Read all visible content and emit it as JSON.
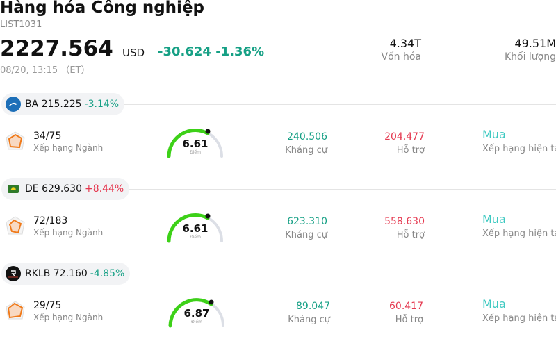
{
  "header": {
    "title": "Hàng hóa Công nghiệp",
    "code": "LIST1031",
    "price": "2227.564",
    "currency": "USD",
    "change": "-30.624 -1.36%",
    "timestamp": "08/20, 13:15 （ET）"
  },
  "stats": {
    "market_cap_value": "4.34T",
    "market_cap_label": "Vốn hóa",
    "volume_value": "49.51M",
    "volume_label": "Khối lượng"
  },
  "colors": {
    "positive": "#e53950",
    "negative": "#16a085",
    "gauge_fill": "#3dd118",
    "rating": "#3ec9c1"
  },
  "stocks": [
    {
      "ticker": "BA",
      "price": "215.225",
      "change": "-3.14%",
      "direction": "down",
      "logo_icon": "boeing-logo-icon",
      "rank": "34/75",
      "rank_label": "Xếp hạng Ngành",
      "score": "6.61",
      "score_label": "Điểm",
      "resistance": "240.506",
      "resistance_label": "Kháng cự",
      "support": "204.477",
      "support_label": "Hỗ trợ",
      "rating": "Mua",
      "rating_label": "Xếp hạng hiện tại"
    },
    {
      "ticker": "DE",
      "price": "629.630",
      "change": "+8.44%",
      "direction": "up",
      "logo_icon": "deere-logo-icon",
      "rank": "72/183",
      "rank_label": "Xếp hạng Ngành",
      "score": "6.61",
      "score_label": "Điểm",
      "resistance": "623.310",
      "resistance_label": "Kháng cự",
      "support": "558.630",
      "support_label": "Hỗ trợ",
      "rating": "Mua",
      "rating_label": "Xếp hạng hiện tại"
    },
    {
      "ticker": "RKLB",
      "price": "72.160",
      "change": "-4.85%",
      "direction": "down",
      "logo_icon": "rocketlab-logo-icon",
      "rank": "29/75",
      "rank_label": "Xếp hạng Ngành",
      "score": "6.87",
      "score_label": "Điểm",
      "resistance": "89.047",
      "resistance_label": "Kháng cự",
      "support": "60.417",
      "support_label": "Hỗ trợ",
      "rating": "Mua",
      "rating_label": "Xếp hạng hiện tại"
    }
  ]
}
